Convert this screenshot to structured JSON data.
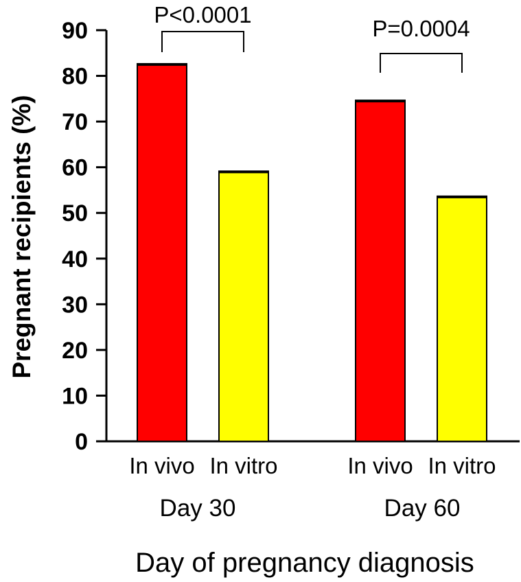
{
  "chart_data": {
    "type": "bar",
    "title": "",
    "ylabel": "Pregnant recipients (%)",
    "xlabel": "Day of pregnancy diagnosis",
    "ylim": [
      0,
      90
    ],
    "yticks": [
      0,
      10,
      20,
      30,
      40,
      50,
      60,
      70,
      80,
      90
    ],
    "groups": [
      {
        "label": "Day 30",
        "bars": [
          {
            "label": "In vivo",
            "value": 82.5,
            "color": "#ff0000"
          },
          {
            "label": "In vitro",
            "value": 59,
            "color": "#ffff00"
          }
        ],
        "pvalue": "P<0.0001"
      },
      {
        "label": "Day 60",
        "bars": [
          {
            "label": "In vivo",
            "value": 74.5,
            "color": "#ff0000"
          },
          {
            "label": "In vitro",
            "value": 53.5,
            "color": "#ffff00"
          }
        ],
        "pvalue": "P=0.0004"
      }
    ]
  }
}
